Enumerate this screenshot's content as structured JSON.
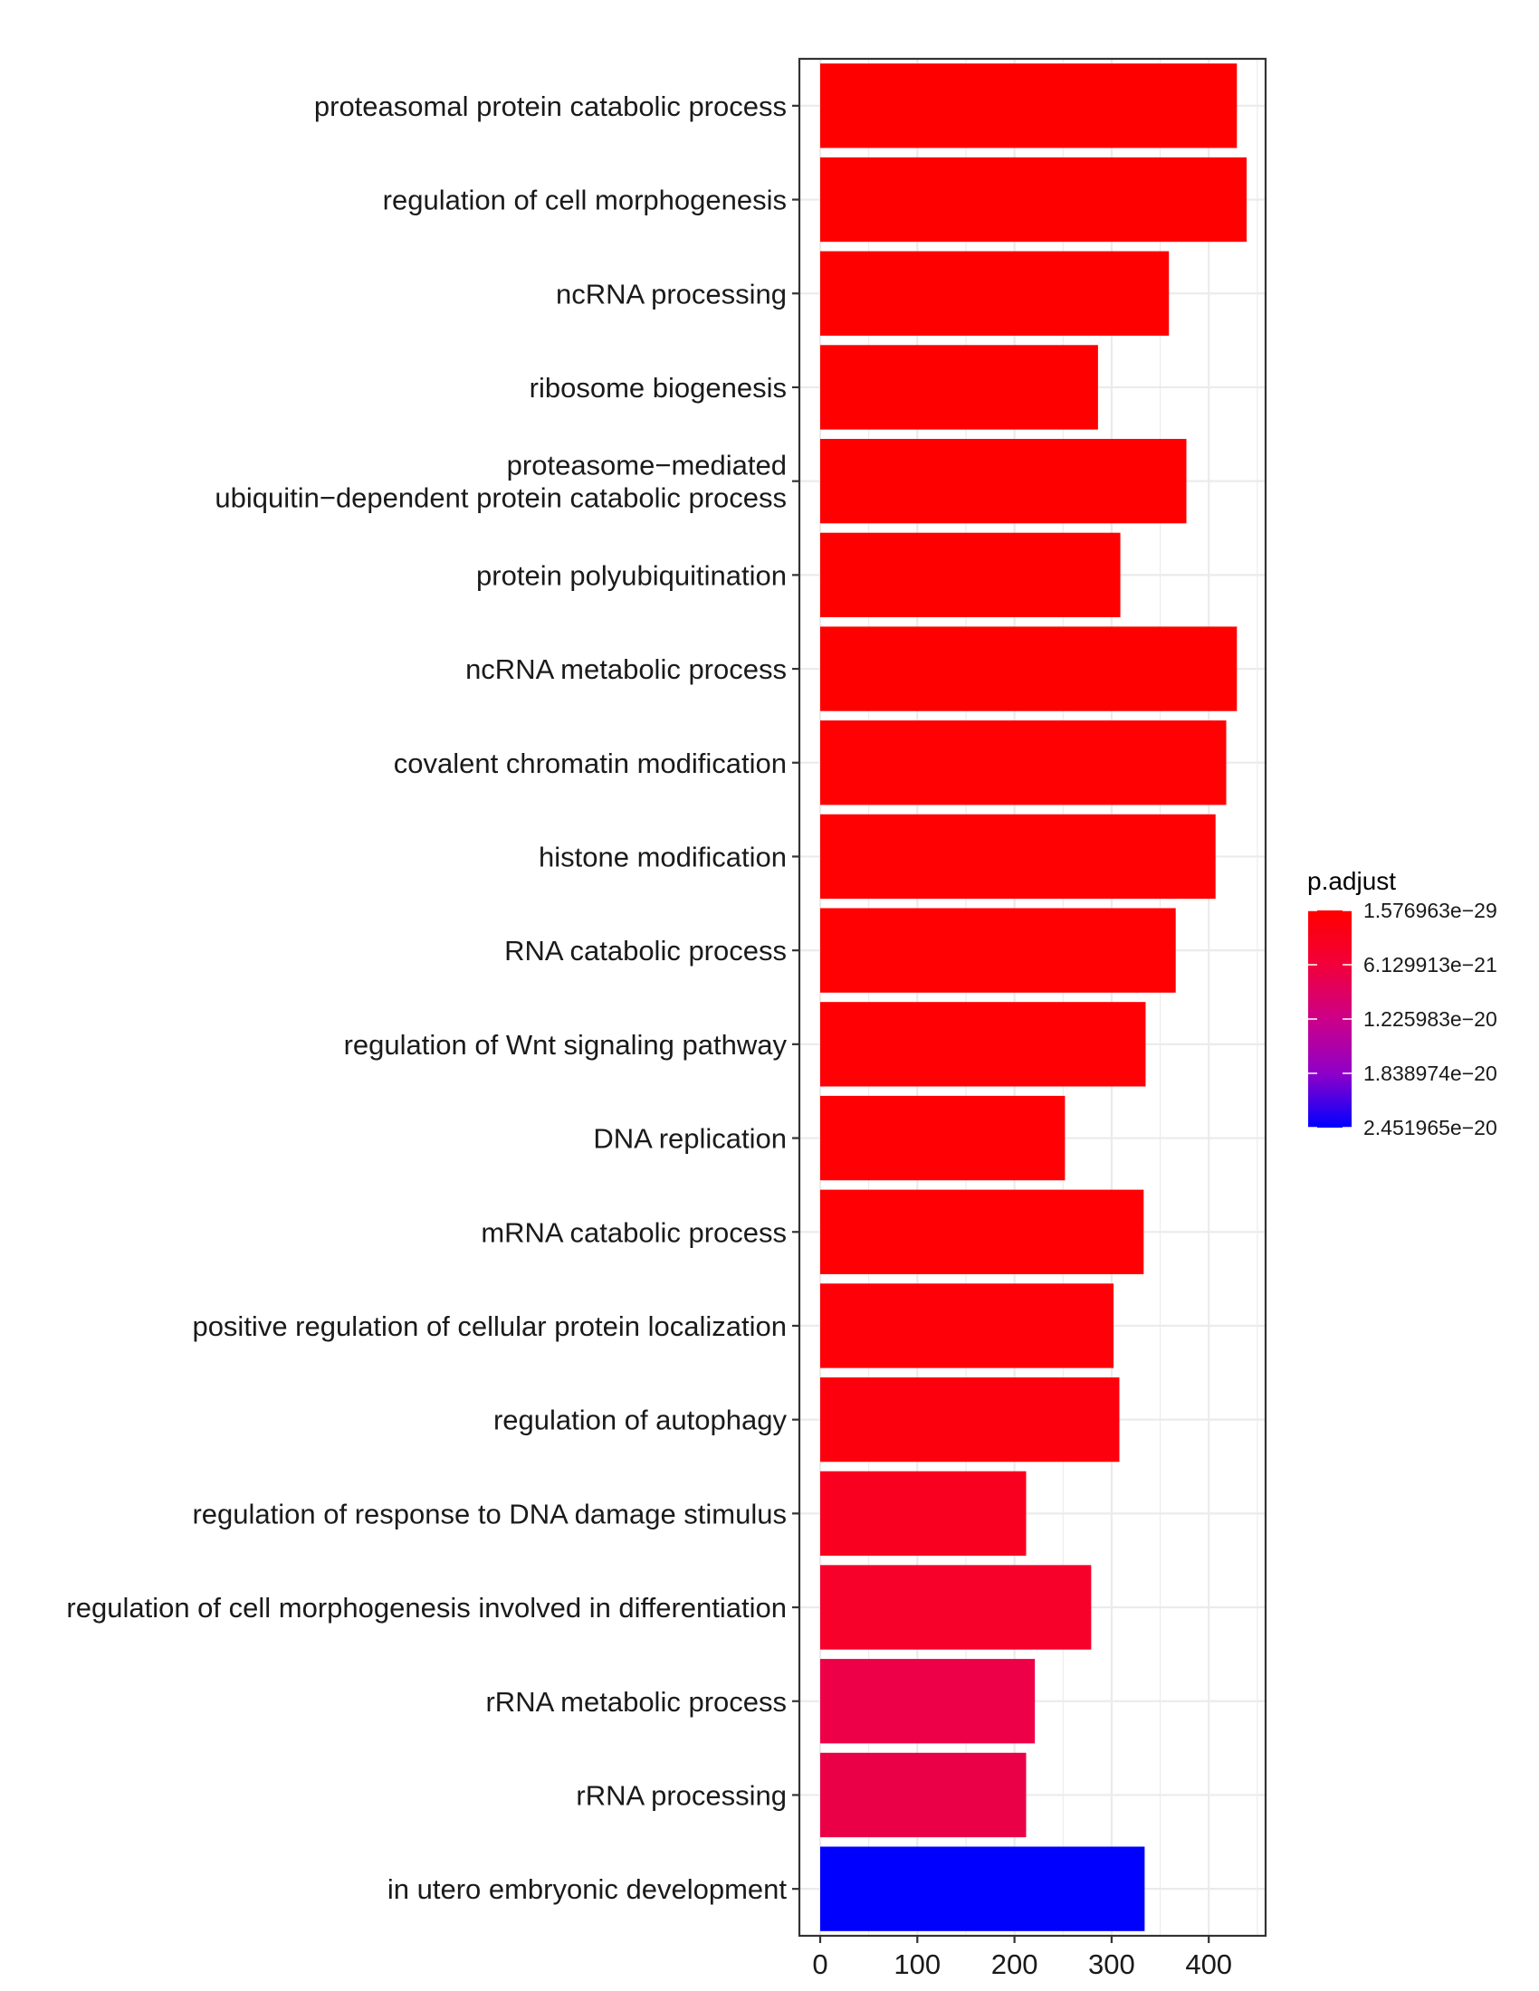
{
  "chart_data": {
    "type": "bar",
    "orientation": "horizontal",
    "title": "",
    "xlabel": "",
    "ylabel": "",
    "xlim": [
      -21.6,
      458
    ],
    "x_ticks": [
      0,
      100,
      200,
      300,
      400
    ],
    "x_tick_labels": [
      "0",
      "100",
      "200",
      "300",
      "400"
    ],
    "grid": true,
    "categories": [
      "proteasomal protein catabolic process",
      "regulation of cell morphogenesis",
      "ncRNA processing",
      "ribosome biogenesis",
      "proteasome−mediated\nubiquitin−dependent protein catabolic process",
      "protein polyubiquitination",
      "ncRNA metabolic process",
      "covalent chromatin modification",
      "histone modification",
      "RNA catabolic process",
      "regulation of Wnt signaling pathway",
      "DNA replication",
      "mRNA catabolic process",
      "positive regulation of cellular protein localization",
      "regulation of autophagy",
      "regulation of response to DNA damage stimulus",
      "regulation of cell morphogenesis involved in differentiation",
      "rRNA metabolic process",
      "rRNA processing",
      "in utero embryonic development"
    ],
    "values": [
      429,
      439,
      359,
      286,
      377,
      309,
      429,
      418,
      407,
      366,
      335,
      252,
      333,
      302,
      308,
      212,
      279,
      221,
      212,
      334
    ],
    "bar_colors": [
      "#FF0000",
      "#FF0000",
      "#FF0000",
      "#FF0000",
      "#FF0000",
      "#FF0000",
      "#FF0000",
      "#FF0003",
      "#FF0003",
      "#FF0003",
      "#FF0004",
      "#FF0004",
      "#FF0004",
      "#FE0008",
      "#FD000E",
      "#FA0020",
      "#F7002A",
      "#EE0048",
      "#EA0046",
      "#0000FF"
    ],
    "legend": {
      "title": "p.adjust",
      "position": "right",
      "type": "colorbar",
      "low_color": "#FF0000",
      "high_color": "#0000FF",
      "labels": [
        "1.576963e−29",
        "6.129913e−21",
        "1.225983e−20",
        "1.838974e−20",
        "2.451965e−20"
      ],
      "values": [
        1.576963e-29,
        6.129913e-21,
        1.225983e-20,
        1.838974e-20,
        2.451965e-20
      ]
    }
  }
}
